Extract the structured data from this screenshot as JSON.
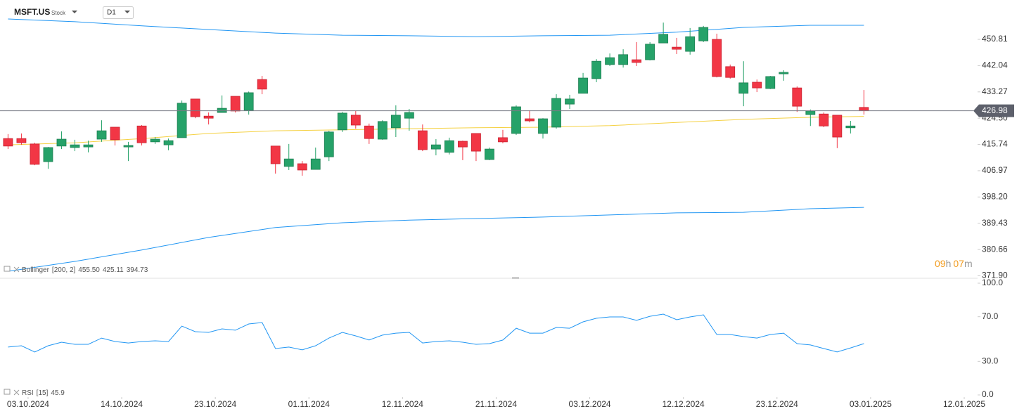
{
  "header": {
    "symbol": "MSFT.US",
    "kind": "Stock",
    "timeframe": "D1",
    "countdown": [
      "09",
      "h",
      "07",
      "m"
    ]
  },
  "chart_data": [
    {
      "type": "candlestick",
      "open": [
        417.7,
        417.7,
        415.9,
        410.0,
        415.2,
        414.7,
        414.9,
        417.5,
        421.5,
        414.9,
        421.9,
        416.6,
        415.6,
        418.0,
        430.9,
        425.2,
        426.4,
        431.8,
        427.1,
        437.4,
        415.2,
        408.4,
        409.3,
        407.4,
        411.6,
        420.6,
        425.5,
        421.9,
        417.5,
        421.3,
        424.5,
        420.3,
        414.2,
        413.1,
        416.8,
        419.4,
        410.7,
        418.0,
        419.4,
        424.3,
        419.4,
        421.5,
        429.2,
        432.8,
        437.7,
        442.4,
        442.4,
        444.0,
        444.0,
        449.6,
        448.2,
        446.8,
        450.3,
        450.8,
        441.7,
        432.8,
        436.5,
        434.4,
        439.3,
        434.6,
        425.7,
        425.9,
        425.5,
        421.3,
        428.1
      ],
      "high": [
        419.2,
        419.4,
        416.3,
        414.9,
        420.1,
        417.3,
        417.0,
        423.8,
        421.5,
        416.6,
        422.2,
        418.2,
        417.7,
        430.4,
        430.9,
        426.4,
        432.1,
        431.8,
        433.4,
        438.6,
        415.2,
        415.9,
        410.2,
        414.7,
        420.3,
        426.6,
        426.9,
        422.7,
        423.8,
        428.8,
        427.6,
        422.4,
        417.5,
        418.0,
        417.0,
        419.4,
        414.7,
        420.6,
        428.8,
        427.1,
        424.5,
        432.5,
        432.3,
        439.6,
        444.2,
        446.1,
        447.5,
        449.9,
        449.9,
        456.4,
        451.3,
        454.6,
        455.3,
        452.7,
        442.4,
        443.5,
        437.4,
        438.6,
        440.5,
        435.1,
        427.4,
        426.4,
        425.5,
        423.6,
        433.9
      ],
      "low": [
        414.2,
        415.6,
        408.8,
        407.6,
        414.2,
        413.5,
        413.1,
        416.6,
        415.4,
        410.2,
        415.4,
        415.9,
        413.8,
        418.0,
        424.5,
        422.4,
        426.4,
        426.4,
        425.7,
        432.5,
        406.0,
        407.2,
        405.3,
        407.4,
        410.2,
        419.9,
        421.0,
        415.9,
        417.3,
        418.2,
        420.3,
        413.5,
        412.1,
        412.4,
        410.5,
        410.2,
        410.5,
        416.1,
        418.9,
        423.1,
        417.7,
        421.0,
        427.6,
        432.8,
        436.5,
        441.9,
        441.4,
        441.9,
        443.8,
        449.6,
        445.9,
        445.7,
        449.9,
        438.1,
        437.7,
        428.5,
        433.2,
        434.2,
        437.0,
        426.6,
        421.9,
        421.5,
        414.5,
        419.4,
        425.7
      ],
      "close": [
        415.2,
        416.3,
        409.1,
        414.7,
        417.5,
        415.6,
        415.6,
        420.3,
        417.3,
        415.4,
        416.3,
        417.5,
        417.0,
        429.5,
        425.0,
        424.5,
        427.8,
        426.9,
        433.0,
        434.2,
        409.3,
        410.9,
        407.2,
        410.9,
        419.9,
        426.2,
        422.2,
        417.7,
        423.4,
        425.5,
        426.4,
        414.0,
        415.6,
        417.0,
        414.9,
        413.5,
        414.2,
        416.6,
        428.3,
        423.6,
        424.3,
        431.1,
        430.9,
        437.9,
        443.5,
        444.7,
        445.7,
        443.1,
        449.2,
        452.5,
        447.5,
        451.7,
        454.8,
        438.4,
        438.1,
        436.3,
        434.6,
        438.4,
        439.8,
        428.5,
        426.9,
        421.9,
        418.2,
        421.9,
        426.98
      ],
      "up_color": "#26a269",
      "down_color": "#f23645",
      "price_line_color": "#787b86",
      "bollinger": {
        "name": "Bollinger",
        "params": "[200,  2]",
        "value_labels": [
          "455.50",
          "425.11",
          "394.73"
        ],
        "x": [
          0,
          5,
          10,
          15,
          20,
          25,
          30,
          35,
          40,
          45,
          50,
          55,
          60,
          64
        ],
        "upper": [
          457.6,
          456.7,
          455.3,
          454.1,
          452.9,
          452.2,
          452.0,
          451.7,
          452.0,
          452.2,
          453.2,
          454.8,
          455.5,
          455.5
        ],
        "middle": [
          415.6,
          416.3,
          417.7,
          419.4,
          420.3,
          420.6,
          421.0,
          421.3,
          421.5,
          422.0,
          423.1,
          424.1,
          424.8,
          425.11
        ],
        "lower": [
          373.4,
          376.7,
          380.5,
          384.7,
          388.0,
          389.6,
          390.5,
          391.0,
          391.5,
          392.2,
          392.9,
          393.1,
          394.3,
          394.73
        ],
        "band_color": "#2196f3",
        "middle_color": "#f5d142"
      },
      "xlim": [
        -0.6,
        72.5
      ],
      "xticks": [
        {
          "value": 1.5,
          "label": "03.10.2024"
        },
        {
          "value": 8.5,
          "label": "14.10.2024"
        },
        {
          "value": 15.5,
          "label": "23.10.2024"
        },
        {
          "value": 22.5,
          "label": "01.11.2024"
        },
        {
          "value": 29.5,
          "label": "12.11.2024"
        },
        {
          "value": 36.5,
          "label": "21.11.2024"
        },
        {
          "value": 43.5,
          "label": "03.12.2024"
        },
        {
          "value": 50.5,
          "label": "12.12.2024"
        },
        {
          "value": 57.5,
          "label": "23.12.2024"
        },
        {
          "value": 64.5,
          "label": "03.01.2025"
        },
        {
          "value": 71.5,
          "label": "12.01.2025"
        }
      ],
      "ylim": [
        371.31,
        463.94
      ],
      "yticks": [
        450.81,
        442.04,
        433.27,
        {
          "value": 424.5,
          "label": "424.50"
        },
        415.74,
        406.97,
        {
          "value": 398.2,
          "label": "398.20"
        },
        389.43,
        380.66,
        {
          "value": 371.9,
          "label": "371.90"
        }
      ]
    },
    {
      "type": "line",
      "series": [
        {
          "name": "RSI",
          "params": "[15]",
          "color": "#2196f3",
          "values": [
            42.8,
            44.0,
            38.4,
            44.0,
            47.2,
            45.3,
            45.3,
            50.9,
            47.8,
            46.5,
            47.8,
            48.4,
            47.8,
            61.6,
            56.6,
            56.0,
            59.1,
            57.9,
            63.5,
            64.8,
            41.5,
            42.8,
            40.3,
            44.0,
            50.9,
            56.0,
            52.8,
            49.1,
            53.5,
            55.3,
            56.0,
            46.5,
            47.8,
            48.4,
            47.2,
            45.3,
            45.9,
            49.1,
            59.7,
            55.3,
            55.3,
            60.4,
            59.7,
            65.4,
            68.6,
            69.8,
            69.8,
            66.7,
            70.4,
            72.3,
            67.3,
            69.8,
            71.7,
            54.1,
            54.1,
            52.2,
            50.9,
            54.1,
            55.3,
            45.9,
            44.7,
            41.5,
            38.4,
            42.1,
            45.9
          ]
        }
      ],
      "ylim": [
        0,
        100
      ],
      "yticks": [
        {
          "value": 100,
          "label": "100.0"
        },
        {
          "value": 70,
          "label": "70.0"
        },
        {
          "value": 30,
          "label": "30.0"
        },
        {
          "value": 0,
          "label": "0.0"
        }
      ]
    }
  ]
}
